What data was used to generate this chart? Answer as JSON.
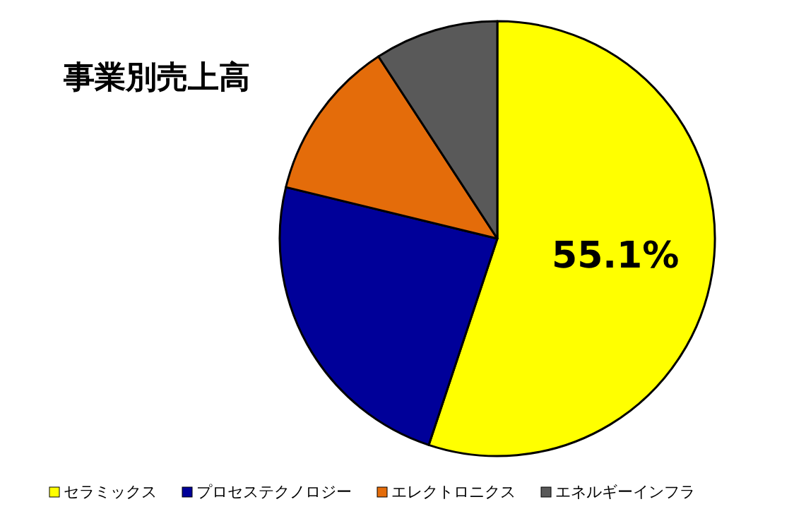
{
  "chart_data": {
    "type": "pie",
    "title": "事業別売上高",
    "categories": [
      "セラミックス",
      "プロセステクノロジー",
      "エレクトロニクス",
      "エネルギーインフラ"
    ],
    "values": [
      55.1,
      23.7,
      12.0,
      9.2
    ],
    "colors": [
      "#ffff00",
      "#000099",
      "#e46c0a",
      "#595959"
    ],
    "value_labels": [
      "55.1%",
      null,
      null,
      null
    ],
    "legend": "bottom"
  }
}
